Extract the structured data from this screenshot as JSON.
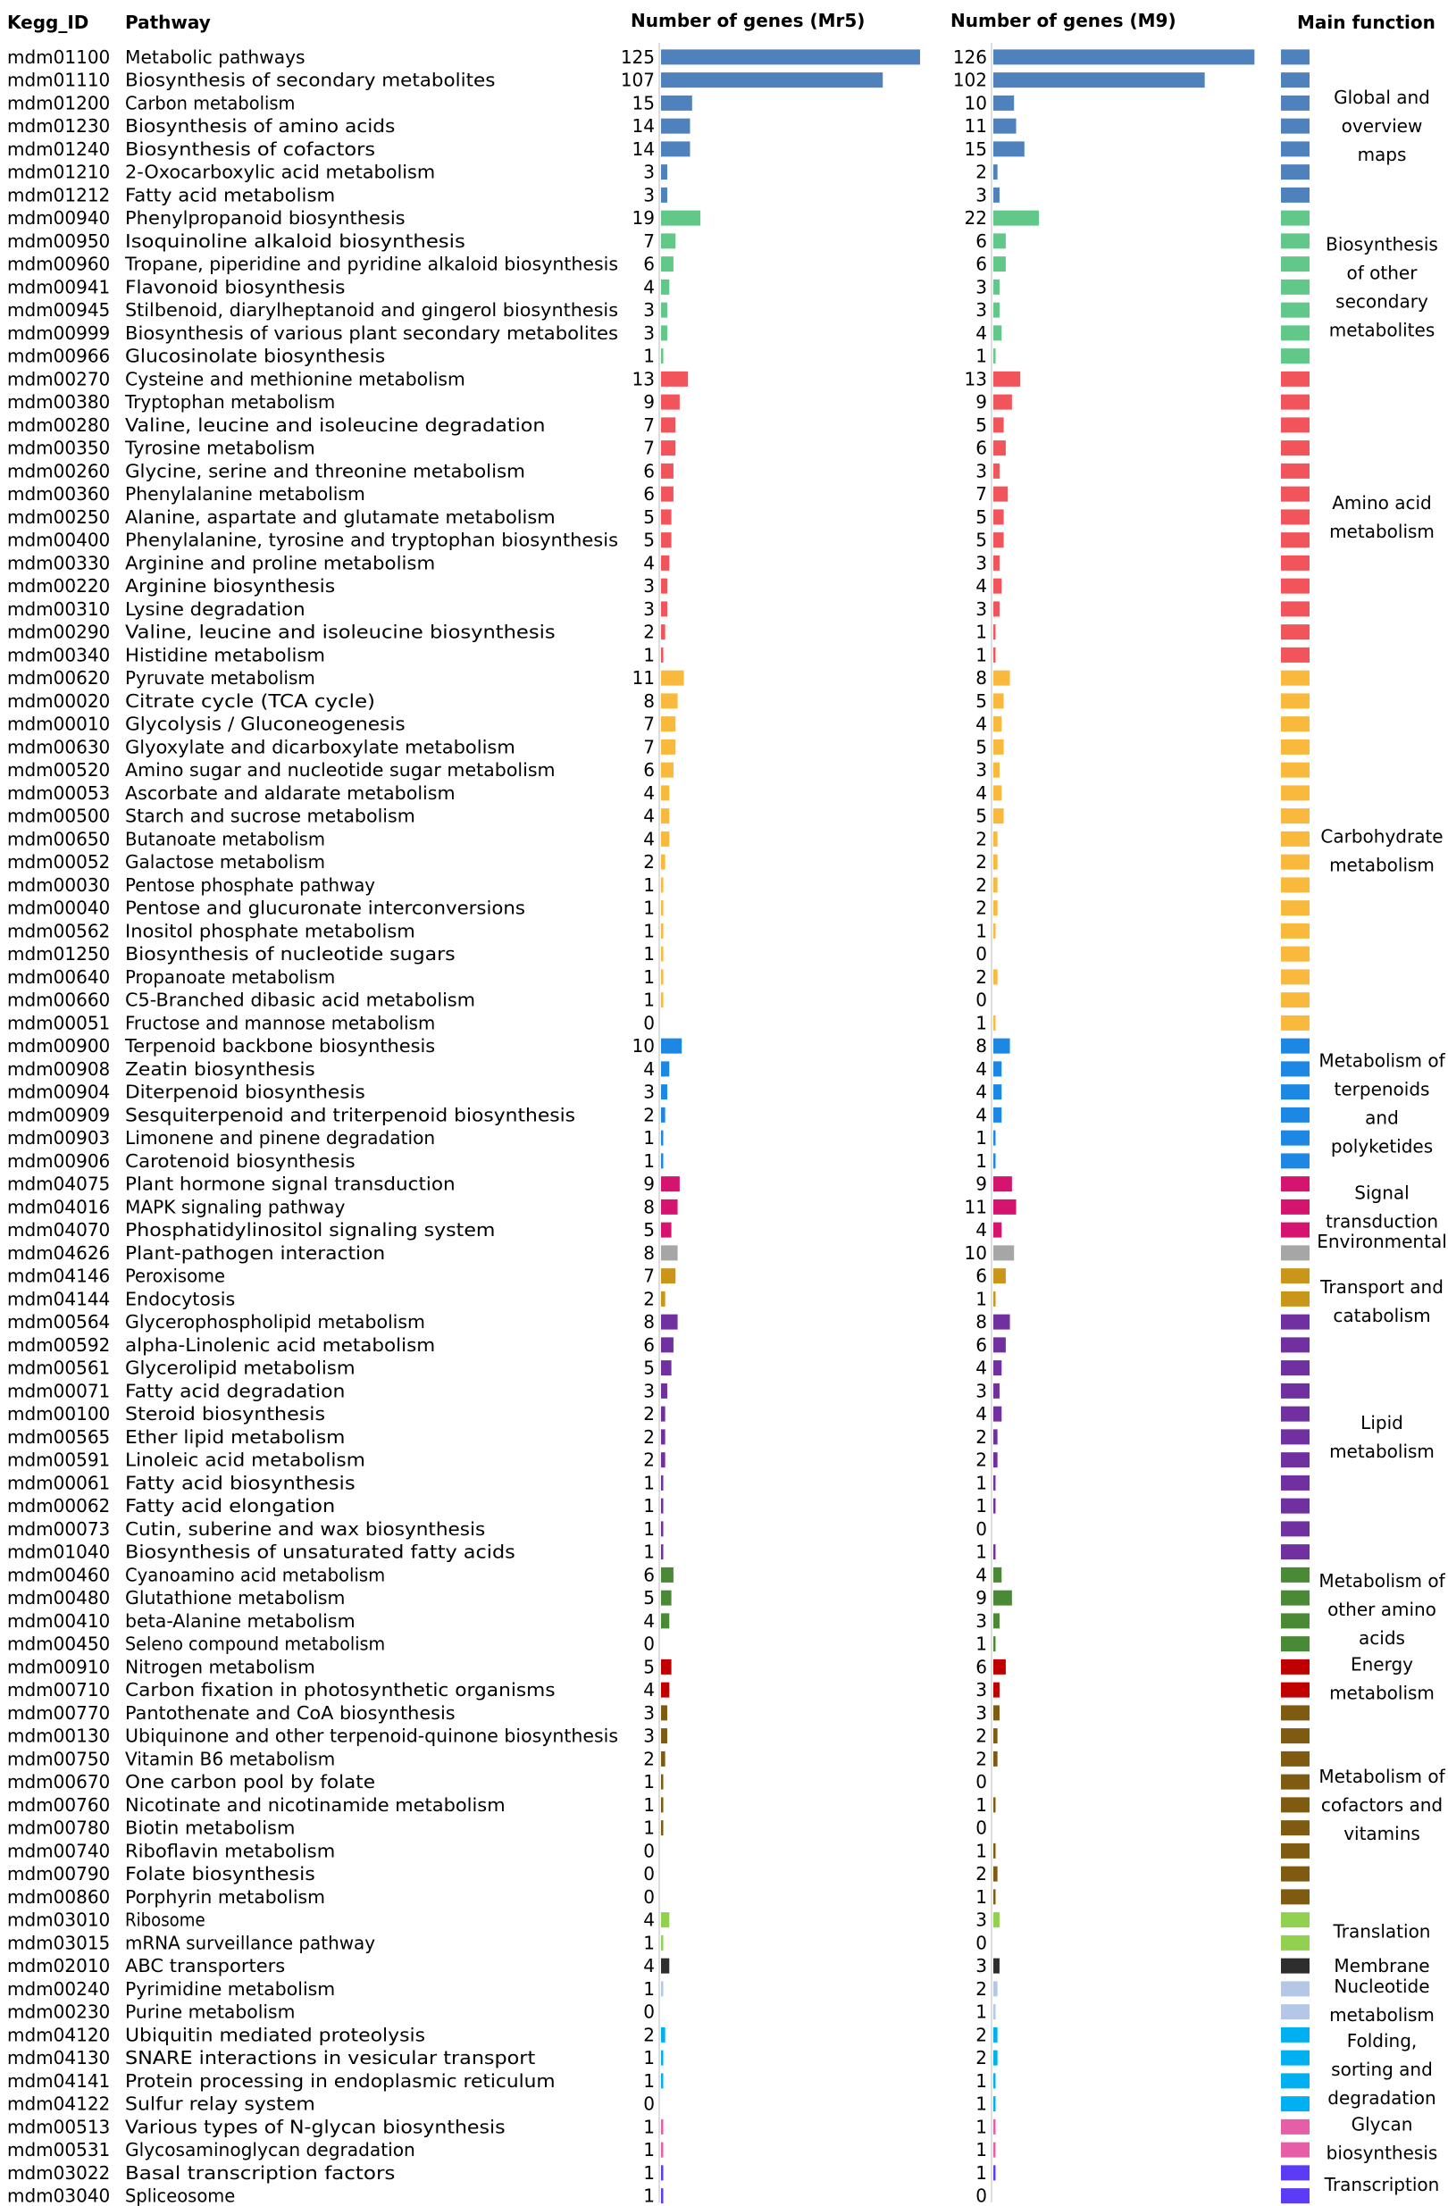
{
  "headers": {
    "kegg_id": "Kegg_ID",
    "pathway": "Pathway",
    "mr5": "Number of genes (Mr5)",
    "m9": "Number of genes (M9)",
    "main_function": "Main function"
  },
  "groups": [
    {
      "key": "global",
      "color": "#4F81BD",
      "label": [
        "Global and",
        "overview",
        "maps"
      ]
    },
    {
      "key": "secondary",
      "color": "#62C889",
      "label": [
        "Biosynthesis",
        "of other",
        "secondary",
        "metabolites"
      ]
    },
    {
      "key": "amino",
      "color": "#F2545B",
      "label": [
        "Amino acid",
        "metabolism"
      ]
    },
    {
      "key": "carb",
      "color": "#F8B93C",
      "label": [
        "Carbohydrate",
        "metabolism"
      ]
    },
    {
      "key": "terpenoid",
      "color": "#1C88E3",
      "label": [
        "Metabolism of",
        "terpenoids",
        "and",
        "polyketides"
      ]
    },
    {
      "key": "signal",
      "color": "#D4146E",
      "label": [
        "Signal",
        "transduction"
      ]
    },
    {
      "key": "environmental",
      "color": "#A6A6A6",
      "label": [
        "Environmental"
      ]
    },
    {
      "key": "transport",
      "color": "#C9961A",
      "label": [
        "Transport and",
        "catabolism"
      ]
    },
    {
      "key": "lipid",
      "color": "#7030A0",
      "label": [
        "Lipid",
        "metabolism"
      ]
    },
    {
      "key": "otheramino",
      "color": "#4A8A37",
      "label": [
        "Metabolism of",
        "other amino",
        "acids"
      ]
    },
    {
      "key": "energy",
      "color": "#C00000",
      "label": [
        "Energy",
        "metabolism"
      ]
    },
    {
      "key": "cofactors",
      "color": "#7F5B12",
      "label": [
        "Metabolism of",
        "cofactors and",
        "vitamins"
      ]
    },
    {
      "key": "translation",
      "color": "#92D050",
      "label": [
        "Translation"
      ]
    },
    {
      "key": "membrane",
      "color": "#2E2E2E",
      "label": [
        "Membrane"
      ]
    },
    {
      "key": "nucleotide",
      "color": "#B4C7E7",
      "label": [
        "Nucleotide",
        "metabolism"
      ]
    },
    {
      "key": "folding",
      "color": "#00B0F0",
      "label": [
        "Folding,",
        "sorting and",
        "degradation"
      ]
    },
    {
      "key": "glycan",
      "color": "#E65DA8",
      "label": [
        "Glycan",
        "biosynthesis"
      ]
    },
    {
      "key": "transcription",
      "color": "#5B3BF5",
      "label": [
        "Transcription"
      ]
    }
  ],
  "chart_data": {
    "type": "bar",
    "series": [
      {
        "name": "Number of genes (Mr5)"
      },
      {
        "name": "Number of genes (M9)"
      }
    ],
    "rows": [
      {
        "id": "mdm01100",
        "pathway": "Metabolic pathways",
        "mr5": 125,
        "m9": 126,
        "group": "global"
      },
      {
        "id": "mdm01110",
        "pathway": "Biosynthesis of secondary metabolites",
        "mr5": 107,
        "m9": 102,
        "group": "global"
      },
      {
        "id": "mdm01200",
        "pathway": "Carbon metabolism",
        "mr5": 15,
        "m9": 10,
        "group": "global"
      },
      {
        "id": "mdm01230",
        "pathway": "Biosynthesis of amino acids",
        "mr5": 14,
        "m9": 11,
        "group": "global"
      },
      {
        "id": "mdm01240",
        "pathway": "Biosynthesis of cofactors",
        "mr5": 14,
        "m9": 15,
        "group": "global"
      },
      {
        "id": "mdm01210",
        "pathway": "2-Oxocarboxylic acid metabolism",
        "mr5": 3,
        "m9": 2,
        "group": "global"
      },
      {
        "id": "mdm01212",
        "pathway": "Fatty acid metabolism",
        "mr5": 3,
        "m9": 3,
        "group": "global"
      },
      {
        "id": "mdm00940",
        "pathway": "Phenylpropanoid biosynthesis",
        "mr5": 19,
        "m9": 22,
        "group": "secondary"
      },
      {
        "id": "mdm00950",
        "pathway": "Isoquinoline alkaloid biosynthesis",
        "mr5": 7,
        "m9": 6,
        "group": "secondary"
      },
      {
        "id": "mdm00960",
        "pathway": "Tropane, piperidine and pyridine alkaloid biosynthesis",
        "mr5": 6,
        "m9": 6,
        "group": "secondary"
      },
      {
        "id": "mdm00941",
        "pathway": "Flavonoid biosynthesis",
        "mr5": 4,
        "m9": 3,
        "group": "secondary"
      },
      {
        "id": "mdm00945",
        "pathway": "Stilbenoid, diarylheptanoid and gingerol biosynthesis",
        "mr5": 3,
        "m9": 3,
        "group": "secondary"
      },
      {
        "id": "mdm00999",
        "pathway": "Biosynthesis of various plant secondary metabolites",
        "mr5": 3,
        "m9": 4,
        "group": "secondary"
      },
      {
        "id": "mdm00966",
        "pathway": "Glucosinolate biosynthesis",
        "mr5": 1,
        "m9": 1,
        "group": "secondary"
      },
      {
        "id": "mdm00270",
        "pathway": "Cysteine and methionine metabolism",
        "mr5": 13,
        "m9": 13,
        "group": "amino"
      },
      {
        "id": "mdm00380",
        "pathway": "Tryptophan metabolism",
        "mr5": 9,
        "m9": 9,
        "group": "amino"
      },
      {
        "id": "mdm00280",
        "pathway": "Valine, leucine and isoleucine degradation",
        "mr5": 7,
        "m9": 5,
        "group": "amino"
      },
      {
        "id": "mdm00350",
        "pathway": "Tyrosine metabolism",
        "mr5": 7,
        "m9": 6,
        "group": "amino"
      },
      {
        "id": "mdm00260",
        "pathway": "Glycine, serine and threonine metabolism",
        "mr5": 6,
        "m9": 3,
        "group": "amino"
      },
      {
        "id": "mdm00360",
        "pathway": "Phenylalanine metabolism",
        "mr5": 6,
        "m9": 7,
        "group": "amino"
      },
      {
        "id": "mdm00250",
        "pathway": "Alanine, aspartate and glutamate metabolism",
        "mr5": 5,
        "m9": 5,
        "group": "amino"
      },
      {
        "id": "mdm00400",
        "pathway": "Phenylalanine, tyrosine and tryptophan biosynthesis",
        "mr5": 5,
        "m9": 5,
        "group": "amino"
      },
      {
        "id": "mdm00330",
        "pathway": "Arginine and proline metabolism",
        "mr5": 4,
        "m9": 3,
        "group": "amino"
      },
      {
        "id": "mdm00220",
        "pathway": "Arginine biosynthesis",
        "mr5": 3,
        "m9": 4,
        "group": "amino"
      },
      {
        "id": "mdm00310",
        "pathway": "Lysine degradation",
        "mr5": 3,
        "m9": 3,
        "group": "amino"
      },
      {
        "id": "mdm00290",
        "pathway": "Valine, leucine and isoleucine biosynthesis",
        "mr5": 2,
        "m9": 1,
        "group": "amino"
      },
      {
        "id": "mdm00340",
        "pathway": "Histidine metabolism",
        "mr5": 1,
        "m9": 1,
        "group": "amino"
      },
      {
        "id": "mdm00620",
        "pathway": "Pyruvate metabolism",
        "mr5": 11,
        "m9": 8,
        "group": "carb"
      },
      {
        "id": "mdm00020",
        "pathway": "Citrate cycle (TCA cycle)",
        "mr5": 8,
        "m9": 5,
        "group": "carb"
      },
      {
        "id": "mdm00010",
        "pathway": "Glycolysis / Gluconeogenesis",
        "mr5": 7,
        "m9": 4,
        "group": "carb"
      },
      {
        "id": "mdm00630",
        "pathway": "Glyoxylate and dicarboxylate metabolism",
        "mr5": 7,
        "m9": 5,
        "group": "carb"
      },
      {
        "id": "mdm00520",
        "pathway": "Amino sugar and nucleotide sugar metabolism",
        "mr5": 6,
        "m9": 3,
        "group": "carb"
      },
      {
        "id": "mdm00053",
        "pathway": "Ascorbate and aldarate metabolism",
        "mr5": 4,
        "m9": 4,
        "group": "carb"
      },
      {
        "id": "mdm00500",
        "pathway": "Starch and sucrose metabolism",
        "mr5": 4,
        "m9": 5,
        "group": "carb"
      },
      {
        "id": "mdm00650",
        "pathway": "Butanoate metabolism",
        "mr5": 4,
        "m9": 2,
        "group": "carb"
      },
      {
        "id": "mdm00052",
        "pathway": "Galactose metabolism",
        "mr5": 2,
        "m9": 2,
        "group": "carb"
      },
      {
        "id": "mdm00030",
        "pathway": "Pentose phosphate pathway",
        "mr5": 1,
        "m9": 2,
        "group": "carb"
      },
      {
        "id": "mdm00040",
        "pathway": "Pentose and glucuronate interconversions",
        "mr5": 1,
        "m9": 2,
        "group": "carb"
      },
      {
        "id": "mdm00562",
        "pathway": "Inositol phosphate metabolism",
        "mr5": 1,
        "m9": 1,
        "group": "carb"
      },
      {
        "id": "mdm01250",
        "pathway": "Biosynthesis of nucleotide sugars",
        "mr5": 1,
        "m9": 0,
        "group": "carb"
      },
      {
        "id": "mdm00640",
        "pathway": "Propanoate metabolism",
        "mr5": 1,
        "m9": 2,
        "group": "carb"
      },
      {
        "id": "mdm00660",
        "pathway": "C5-Branched dibasic acid metabolism",
        "mr5": 1,
        "m9": 0,
        "group": "carb"
      },
      {
        "id": "mdm00051",
        "pathway": "Fructose and mannose metabolism",
        "mr5": 0,
        "m9": 1,
        "group": "carb"
      },
      {
        "id": "mdm00900",
        "pathway": "Terpenoid backbone biosynthesis",
        "mr5": 10,
        "m9": 8,
        "group": "terpenoid"
      },
      {
        "id": "mdm00908",
        "pathway": "Zeatin biosynthesis",
        "mr5": 4,
        "m9": 4,
        "group": "terpenoid"
      },
      {
        "id": "mdm00904",
        "pathway": "Diterpenoid biosynthesis",
        "mr5": 3,
        "m9": 4,
        "group": "terpenoid"
      },
      {
        "id": "mdm00909",
        "pathway": "Sesquiterpenoid and triterpenoid biosynthesis",
        "mr5": 2,
        "m9": 4,
        "group": "terpenoid"
      },
      {
        "id": "mdm00903",
        "pathway": "Limonene and pinene degradation",
        "mr5": 1,
        "m9": 1,
        "group": "terpenoid"
      },
      {
        "id": "mdm00906",
        "pathway": "Carotenoid biosynthesis",
        "mr5": 1,
        "m9": 1,
        "group": "terpenoid"
      },
      {
        "id": "mdm04075",
        "pathway": "Plant hormone signal transduction",
        "mr5": 9,
        "m9": 9,
        "group": "signal"
      },
      {
        "id": "mdm04016",
        "pathway": "MAPK signaling pathway",
        "mr5": 8,
        "m9": 11,
        "group": "signal"
      },
      {
        "id": "mdm04070",
        "pathway": "Phosphatidylinositol signaling system",
        "mr5": 5,
        "m9": 4,
        "group": "signal"
      },
      {
        "id": "mdm04626",
        "pathway": "Plant-pathogen interaction",
        "mr5": 8,
        "m9": 10,
        "group": "environmental"
      },
      {
        "id": "mdm04146",
        "pathway": "Peroxisome",
        "mr5": 7,
        "m9": 6,
        "group": "transport"
      },
      {
        "id": "mdm04144",
        "pathway": "Endocytosis",
        "mr5": 2,
        "m9": 1,
        "group": "transport"
      },
      {
        "id": "mdm00564",
        "pathway": "Glycerophospholipid metabolism",
        "mr5": 8,
        "m9": 8,
        "group": "lipid"
      },
      {
        "id": "mdm00592",
        "pathway": "alpha-Linolenic acid metabolism",
        "mr5": 6,
        "m9": 6,
        "group": "lipid"
      },
      {
        "id": "mdm00561",
        "pathway": "Glycerolipid metabolism",
        "mr5": 5,
        "m9": 4,
        "group": "lipid"
      },
      {
        "id": "mdm00071",
        "pathway": "Fatty acid degradation",
        "mr5": 3,
        "m9": 3,
        "group": "lipid"
      },
      {
        "id": "mdm00100",
        "pathway": "Steroid biosynthesis",
        "mr5": 2,
        "m9": 4,
        "group": "lipid"
      },
      {
        "id": "mdm00565",
        "pathway": "Ether lipid metabolism",
        "mr5": 2,
        "m9": 2,
        "group": "lipid"
      },
      {
        "id": "mdm00591",
        "pathway": "Linoleic acid metabolism",
        "mr5": 2,
        "m9": 2,
        "group": "lipid"
      },
      {
        "id": "mdm00061",
        "pathway": "Fatty acid biosynthesis",
        "mr5": 1,
        "m9": 1,
        "group": "lipid"
      },
      {
        "id": "mdm00062",
        "pathway": "Fatty acid elongation",
        "mr5": 1,
        "m9": 1,
        "group": "lipid"
      },
      {
        "id": "mdm00073",
        "pathway": "Cutin, suberine and wax biosynthesis",
        "mr5": 1,
        "m9": 0,
        "group": "lipid"
      },
      {
        "id": "mdm01040",
        "pathway": "Biosynthesis of unsaturated fatty acids",
        "mr5": 1,
        "m9": 1,
        "group": "lipid"
      },
      {
        "id": "mdm00460",
        "pathway": "Cyanoamino acid metabolism",
        "mr5": 6,
        "m9": 4,
        "group": "otheramino"
      },
      {
        "id": "mdm00480",
        "pathway": "Glutathione metabolism",
        "mr5": 5,
        "m9": 9,
        "group": "otheramino"
      },
      {
        "id": "mdm00410",
        "pathway": "beta-Alanine metabolism",
        "mr5": 4,
        "m9": 3,
        "group": "otheramino"
      },
      {
        "id": "mdm00450",
        "pathway": "Seleno compound metabolism",
        "mr5": 0,
        "m9": 1,
        "group": "otheramino"
      },
      {
        "id": "mdm00910",
        "pathway": "Nitrogen metabolism",
        "mr5": 5,
        "m9": 6,
        "group": "energy"
      },
      {
        "id": "mdm00710",
        "pathway": "Carbon fixation in photosynthetic organisms",
        "mr5": 4,
        "m9": 3,
        "group": "energy"
      },
      {
        "id": "mdm00770",
        "pathway": "Pantothenate and CoA biosynthesis",
        "mr5": 3,
        "m9": 3,
        "group": "cofactors"
      },
      {
        "id": "mdm00130",
        "pathway": "Ubiquinone and other terpenoid-quinone biosynthesis",
        "mr5": 3,
        "m9": 2,
        "group": "cofactors"
      },
      {
        "id": "mdm00750",
        "pathway": "Vitamin B6 metabolism",
        "mr5": 2,
        "m9": 2,
        "group": "cofactors"
      },
      {
        "id": "mdm00670",
        "pathway": "One carbon pool by folate",
        "mr5": 1,
        "m9": 0,
        "group": "cofactors"
      },
      {
        "id": "mdm00760",
        "pathway": "Nicotinate and nicotinamide metabolism",
        "mr5": 1,
        "m9": 1,
        "group": "cofactors"
      },
      {
        "id": "mdm00780",
        "pathway": "Biotin metabolism",
        "mr5": 1,
        "m9": 0,
        "group": "cofactors"
      },
      {
        "id": "mdm00740",
        "pathway": "Riboflavin metabolism",
        "mr5": 0,
        "m9": 1,
        "group": "cofactors"
      },
      {
        "id": "mdm00790",
        "pathway": "Folate biosynthesis",
        "mr5": 0,
        "m9": 2,
        "group": "cofactors"
      },
      {
        "id": "mdm00860",
        "pathway": "Porphyrin metabolism",
        "mr5": 0,
        "m9": 1,
        "group": "cofactors"
      },
      {
        "id": "mdm03010",
        "pathway": "Ribosome",
        "mr5": 4,
        "m9": 3,
        "group": "translation"
      },
      {
        "id": "mdm03015",
        "pathway": "mRNA surveillance pathway",
        "mr5": 1,
        "m9": 0,
        "group": "translation"
      },
      {
        "id": "mdm02010",
        "pathway": "ABC transporters",
        "mr5": 4,
        "m9": 3,
        "group": "membrane"
      },
      {
        "id": "mdm00240",
        "pathway": "Pyrimidine metabolism",
        "mr5": 1,
        "m9": 2,
        "group": "nucleotide"
      },
      {
        "id": "mdm00230",
        "pathway": "Purine metabolism",
        "mr5": 0,
        "m9": 1,
        "group": "nucleotide"
      },
      {
        "id": "mdm04120",
        "pathway": "Ubiquitin mediated proteolysis",
        "mr5": 2,
        "m9": 2,
        "group": "folding"
      },
      {
        "id": "mdm04130",
        "pathway": "SNARE interactions in vesicular transport",
        "mr5": 1,
        "m9": 2,
        "group": "folding"
      },
      {
        "id": "mdm04141",
        "pathway": "Protein processing in endoplasmic reticulum",
        "mr5": 1,
        "m9": 1,
        "group": "folding"
      },
      {
        "id": "mdm04122",
        "pathway": "Sulfur relay system",
        "mr5": 0,
        "m9": 1,
        "group": "folding"
      },
      {
        "id": "mdm00513",
        "pathway": "Various types of N-glycan biosynthesis",
        "mr5": 1,
        "m9": 1,
        "group": "glycan"
      },
      {
        "id": "mdm00531",
        "pathway": "Glycosaminoglycan degradation",
        "mr5": 1,
        "m9": 1,
        "group": "glycan"
      },
      {
        "id": "mdm03022",
        "pathway": "Basal transcription factors",
        "mr5": 1,
        "m9": 1,
        "group": "transcription"
      },
      {
        "id": "mdm03040",
        "pathway": "Spliceosome",
        "mr5": 1,
        "m9": 0,
        "group": "transcription"
      }
    ]
  }
}
